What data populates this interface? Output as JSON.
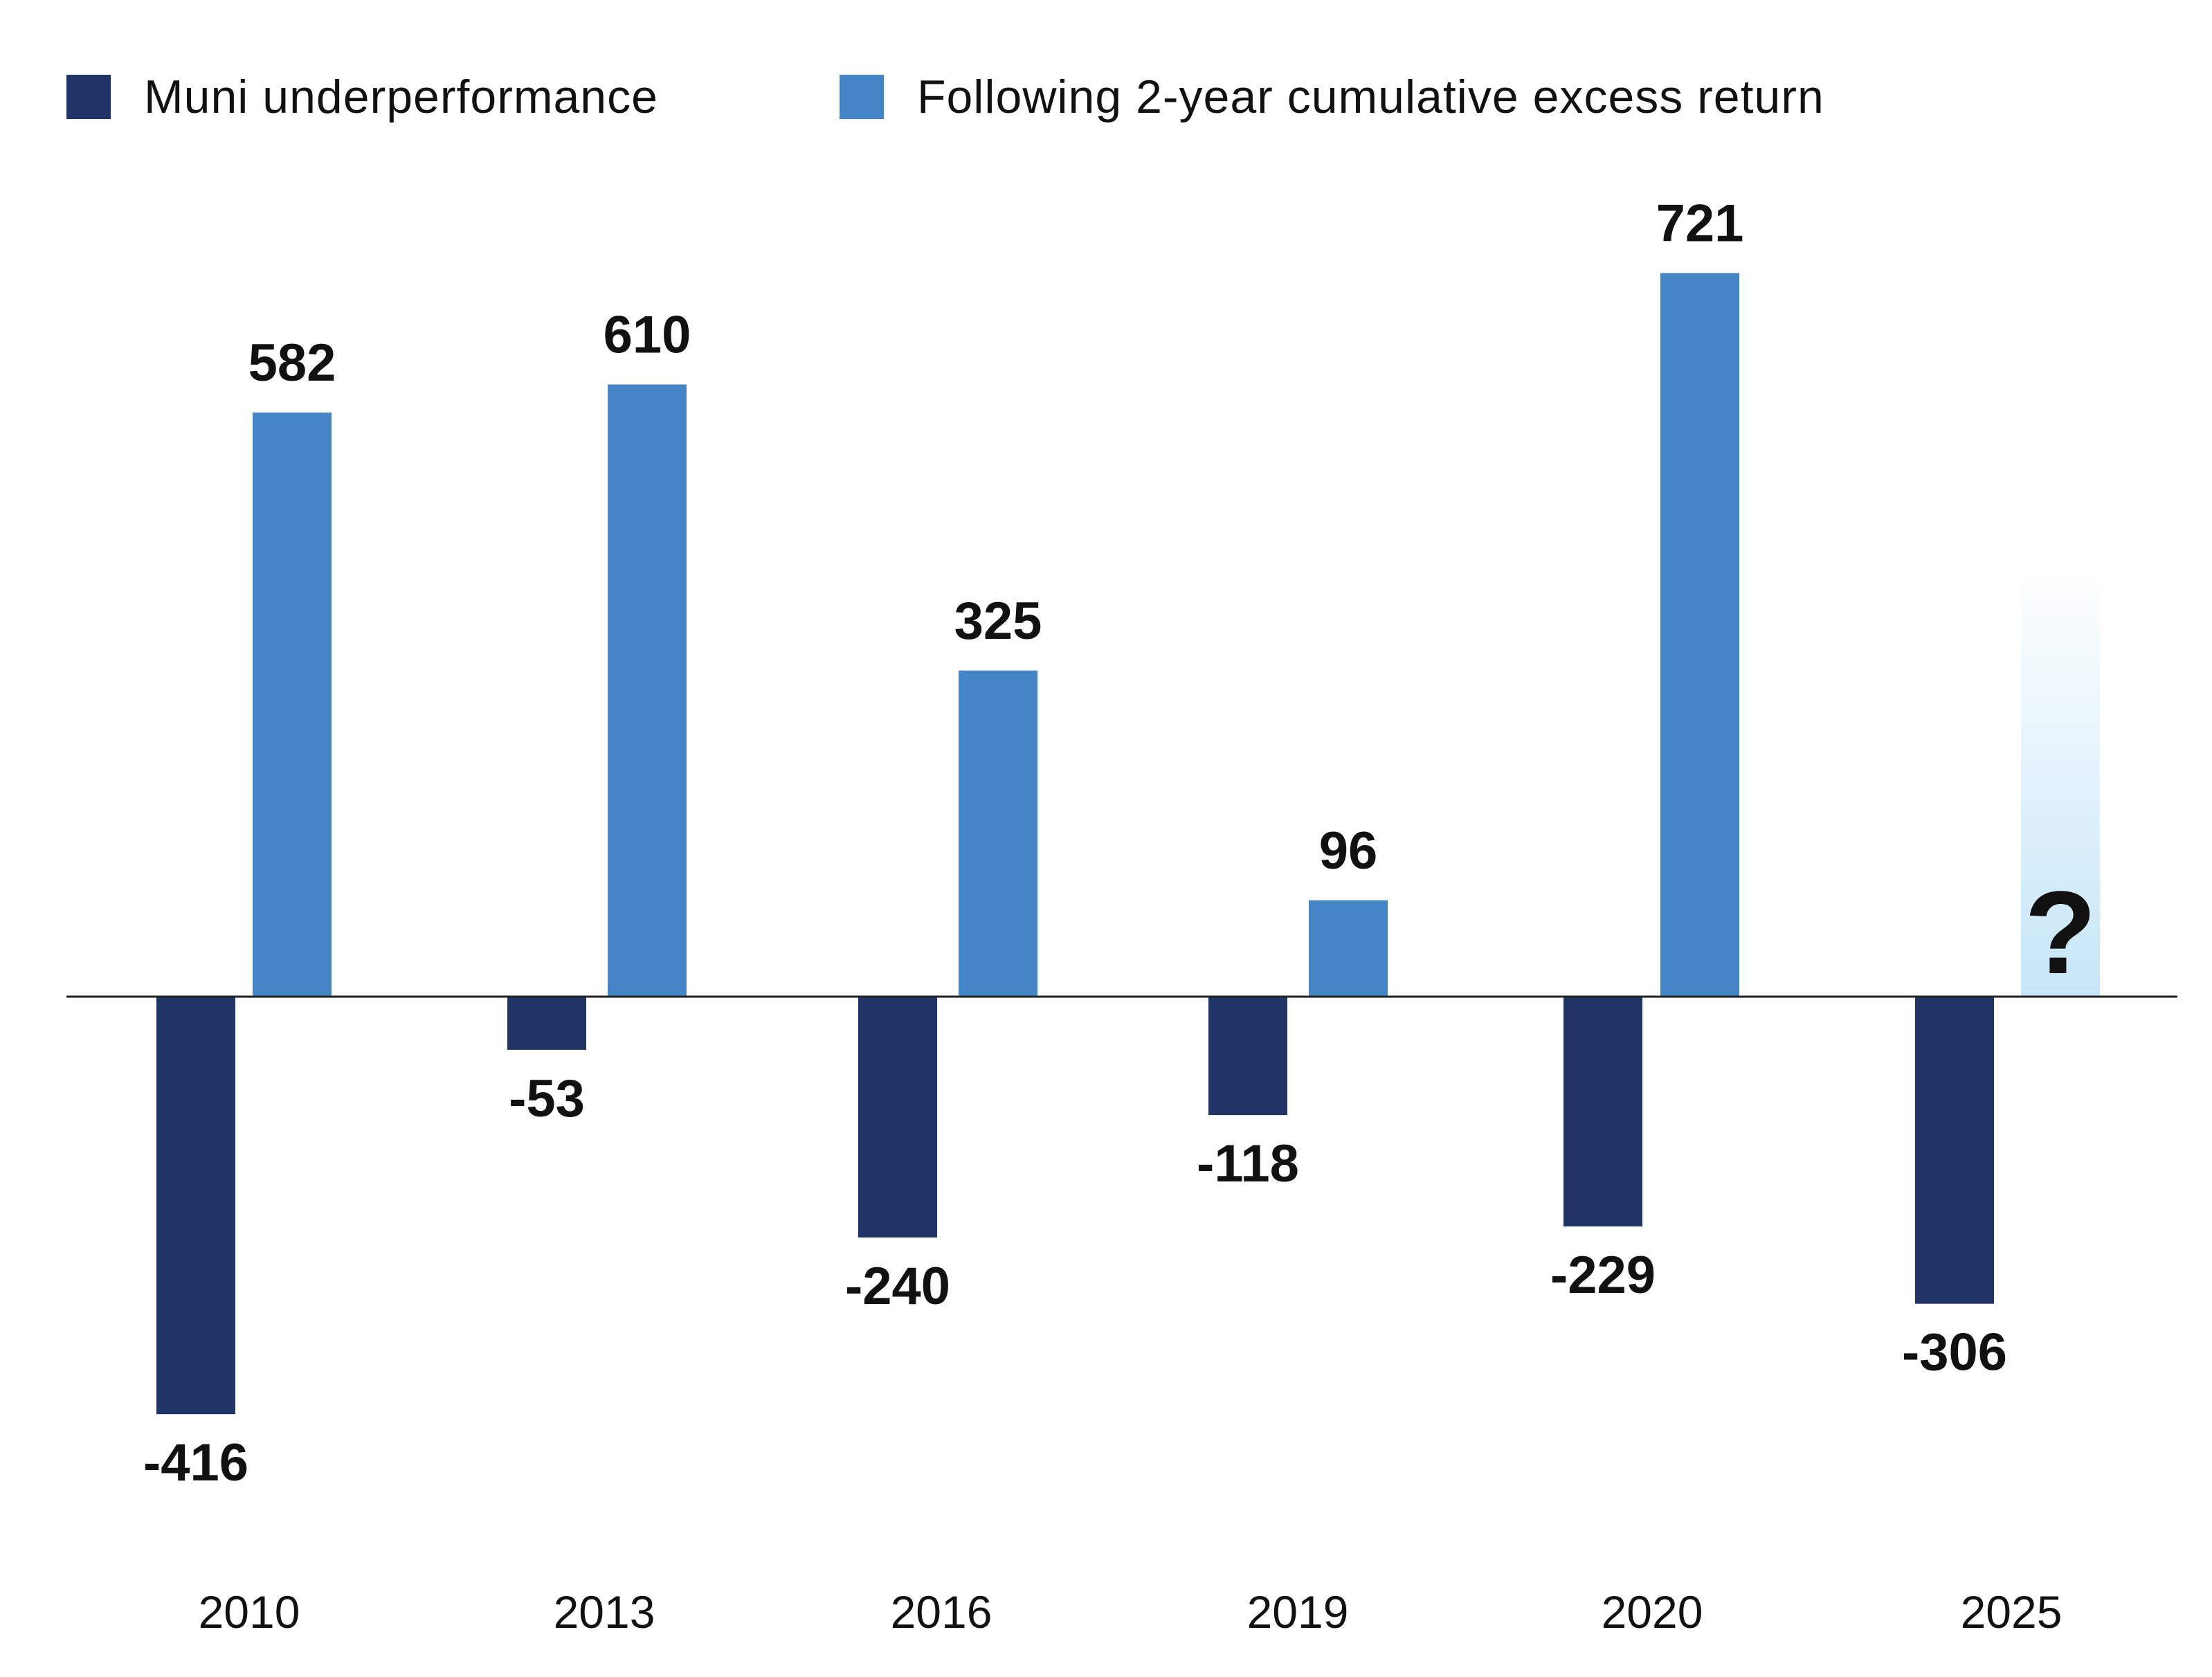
{
  "chart_data": {
    "type": "bar",
    "categories": [
      "2010",
      "2013",
      "2016",
      "2019",
      "2020",
      "2025"
    ],
    "series": [
      {
        "name": "Muni underperformance",
        "color": "#203566",
        "values": [
          -416,
          -53,
          -240,
          -118,
          -229,
          -306
        ],
        "labels": [
          "-416",
          "-53",
          "-240",
          "-118",
          "-229",
          "-306"
        ]
      },
      {
        "name": "Following 2-year cumulative excess return",
        "color": "#4485C5",
        "values": [
          582,
          610,
          325,
          96,
          721,
          null
        ],
        "labels": [
          "582",
          "610",
          "325",
          "96",
          "721",
          "?"
        ]
      }
    ],
    "unknown_bar": {
      "category": "2025",
      "label": "?",
      "value_estimate": 430,
      "gradient_top": "#FFFFFF",
      "gradient_bottom": "#C6E6F8"
    },
    "ylim": [
      -416,
      721
    ],
    "legend_position": "top-left",
    "grid": false,
    "title": "",
    "xlabel": "",
    "ylabel": ""
  }
}
